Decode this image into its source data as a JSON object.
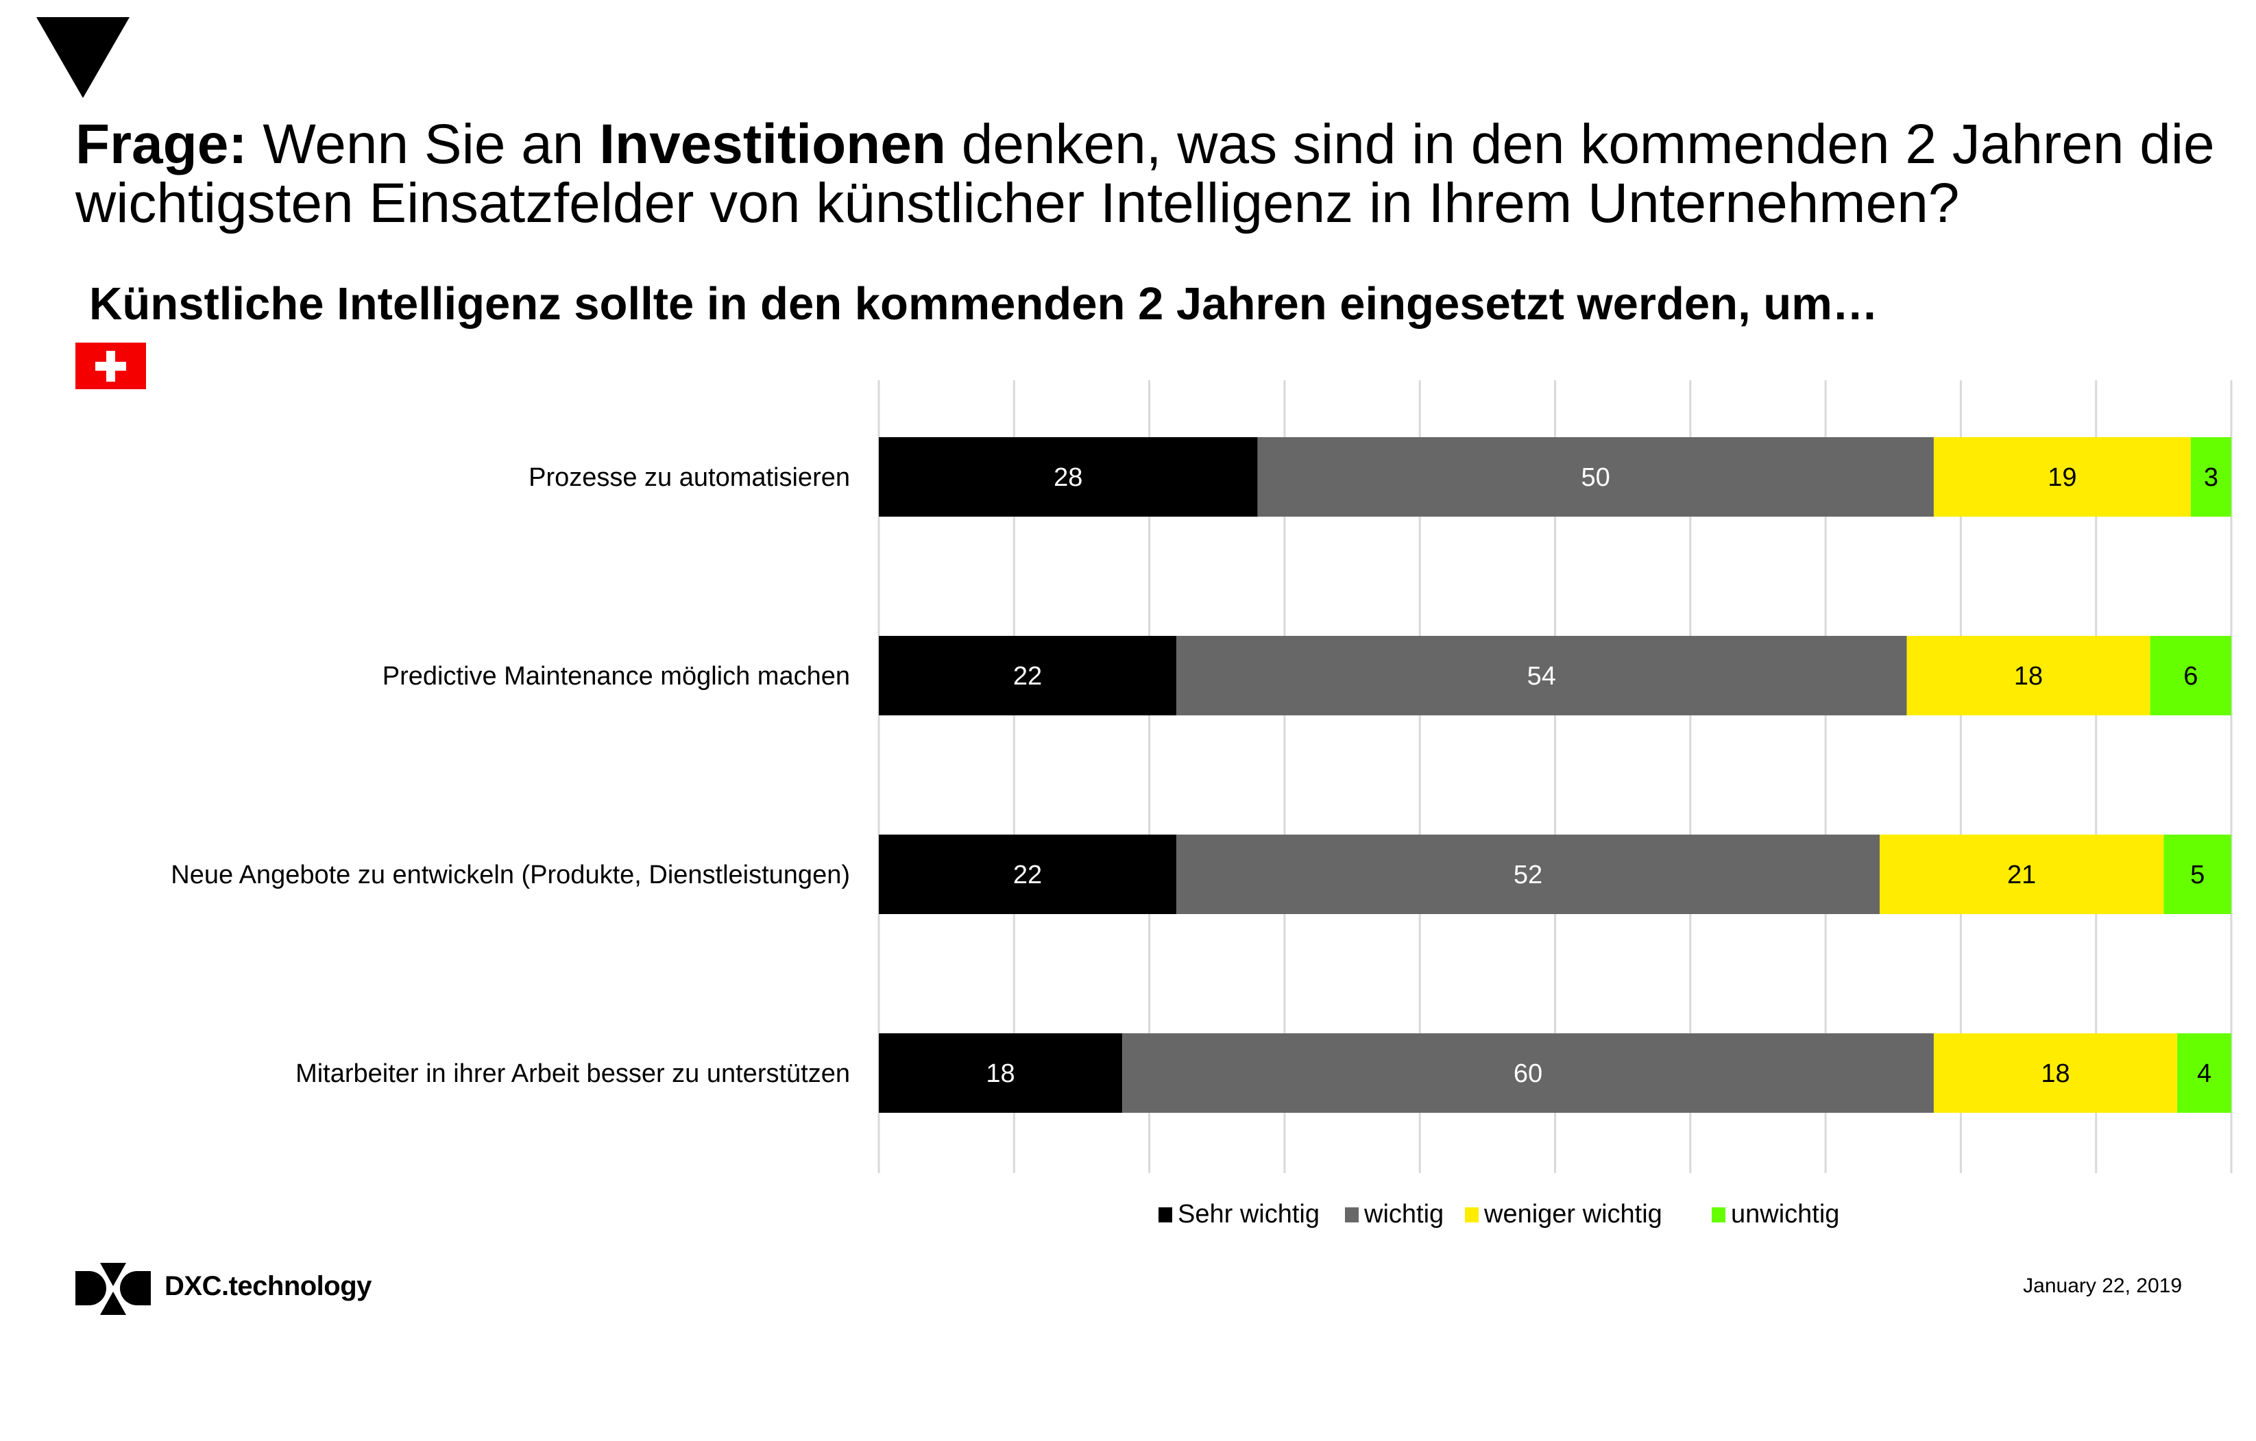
{
  "header": {
    "question_label": "Frage:",
    "question_part1": " Wenn Sie an ",
    "question_bold": "Investitionen",
    "question_part2": " denken, was sind in den kommenden 2 Jahren die wichtigsten Einsatzfelder von künstlicher Intelligenz in Ihrem Unternehmen?",
    "subtitle": "Künstliche Intelligenz sollte in den kommenden 2 Jahren eingesetzt werden, um…",
    "flag_icon": "swiss-flag-icon"
  },
  "colors": {
    "sehr_wichtig": "#000000",
    "wichtig": "#676767",
    "weniger_wichtig": "#ffec00",
    "unwichtig": "#66ff00",
    "gridline": "#d9d9d9"
  },
  "chart_data": {
    "type": "bar",
    "orientation": "horizontal",
    "stacked": true,
    "title": "Künstliche Intelligenz sollte in den kommenden 2 Jahren eingesetzt werden, um…",
    "xlabel": "",
    "ylabel": "",
    "xlim": [
      0,
      100
    ],
    "grid": true,
    "grid_step": 10,
    "legend_position": "bottom",
    "categories": [
      "Prozesse zu automatisieren",
      "Predictive Maintenance möglich machen",
      "Neue Angebote zu entwickeln (Produkte, Dienstleistungen)",
      "Mitarbeiter in ihrer Arbeit besser zu unterstützen"
    ],
    "series": [
      {
        "name": "Sehr wichtig",
        "color": "#000000",
        "label_color": "#ffffff",
        "values": [
          28,
          22,
          22,
          18
        ]
      },
      {
        "name": "wichtig",
        "color": "#676767",
        "label_color": "#ffffff",
        "values": [
          50,
          54,
          52,
          60
        ]
      },
      {
        "name": "weniger wichtig",
        "color": "#ffec00",
        "label_color": "#000000",
        "values": [
          19,
          18,
          21,
          18
        ]
      },
      {
        "name": "unwichtig",
        "color": "#66ff00",
        "label_color": "#000000",
        "values": [
          3,
          6,
          5,
          4
        ]
      }
    ]
  },
  "footer": {
    "brand": "DXC.technology",
    "date": "January 22, 2019"
  }
}
